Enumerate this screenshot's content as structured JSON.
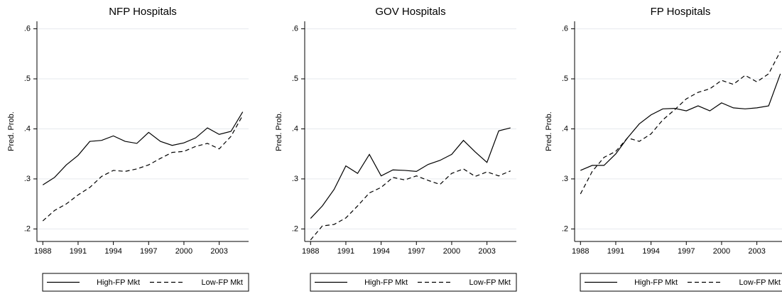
{
  "chart_data": [
    {
      "type": "line",
      "title": "NFP Hospitals",
      "ylabel": "Pred. Prob.",
      "x": [
        1988,
        1989,
        1990,
        1991,
        1992,
        1993,
        1994,
        1995,
        1996,
        1997,
        1998,
        1999,
        2000,
        2001,
        2002,
        2003,
        2004,
        2005
      ],
      "xlim": [
        1987.5,
        2005.5
      ],
      "xticks": [
        1988,
        1991,
        1994,
        1997,
        2000,
        2003
      ],
      "ylim": [
        0.175,
        0.615
      ],
      "yticks": [
        {
          "value": 0.2,
          "label": ".2"
        },
        {
          "value": 0.3,
          "label": ".3"
        },
        {
          "value": 0.4,
          "label": ".4"
        },
        {
          "value": 0.5,
          "label": ".5"
        },
        {
          "value": 0.6,
          "label": ".6"
        }
      ],
      "grid": true,
      "legend": "bottom",
      "series": [
        {
          "name": "High-FP Mkt",
          "color": "#000000",
          "style": "solid",
          "values": [
            0.288,
            0.303,
            0.328,
            0.347,
            0.375,
            0.377,
            0.386,
            0.375,
            0.371,
            0.393,
            0.375,
            0.367,
            0.372,
            0.382,
            0.402,
            0.389,
            0.395,
            0.434
          ]
        },
        {
          "name": "Low-FP Mkt",
          "color": "#000000",
          "style": "dashed",
          "values": [
            0.216,
            0.237,
            0.25,
            0.268,
            0.283,
            0.305,
            0.317,
            0.315,
            0.32,
            0.328,
            0.341,
            0.353,
            0.355,
            0.365,
            0.371,
            0.36,
            0.385,
            0.427
          ]
        }
      ]
    },
    {
      "type": "line",
      "title": "GOV Hospitals",
      "ylabel": "Pred. Prob.",
      "x": [
        1988,
        1989,
        1990,
        1991,
        1992,
        1993,
        1994,
        1995,
        1996,
        1997,
        1998,
        1999,
        2000,
        2001,
        2002,
        2003,
        2004,
        2005
      ],
      "xlim": [
        1987.5,
        2005.5
      ],
      "xticks": [
        1988,
        1991,
        1994,
        1997,
        2000,
        2003
      ],
      "ylim": [
        0.175,
        0.615
      ],
      "yticks": [
        {
          "value": 0.2,
          "label": ".2"
        },
        {
          "value": 0.3,
          "label": ".3"
        },
        {
          "value": 0.4,
          "label": ".4"
        },
        {
          "value": 0.5,
          "label": ".5"
        },
        {
          "value": 0.6,
          "label": ".6"
        }
      ],
      "grid": true,
      "legend": "bottom",
      "series": [
        {
          "name": "High-FP Mkt",
          "color": "#000000",
          "style": "solid",
          "values": [
            0.221,
            0.246,
            0.279,
            0.326,
            0.311,
            0.349,
            0.306,
            0.318,
            0.317,
            0.315,
            0.329,
            0.337,
            0.349,
            0.377,
            0.354,
            0.333,
            0.396,
            0.402
          ]
        },
        {
          "name": "Low-FP Mkt",
          "color": "#000000",
          "style": "dashed",
          "values": [
            0.178,
            0.206,
            0.209,
            0.222,
            0.246,
            0.272,
            0.283,
            0.303,
            0.298,
            0.306,
            0.297,
            0.289,
            0.311,
            0.32,
            0.305,
            0.314,
            0.306,
            0.316
          ]
        }
      ]
    },
    {
      "type": "line",
      "title": "FP Hospitals",
      "ylabel": "Pred. Prob.",
      "x": [
        1988,
        1989,
        1990,
        1991,
        1992,
        1993,
        1994,
        1995,
        1996,
        1997,
        1998,
        1999,
        2000,
        2001,
        2002,
        2003,
        2004,
        2005
      ],
      "xlim": [
        1987.5,
        2005.5
      ],
      "xticks": [
        1988,
        1991,
        1994,
        1997,
        2000,
        2003
      ],
      "ylim": [
        0.175,
        0.615
      ],
      "yticks": [
        {
          "value": 0.2,
          "label": ".2"
        },
        {
          "value": 0.3,
          "label": ".3"
        },
        {
          "value": 0.4,
          "label": ".4"
        },
        {
          "value": 0.5,
          "label": ".5"
        },
        {
          "value": 0.6,
          "label": ".6"
        }
      ],
      "grid": true,
      "legend": "bottom",
      "series": [
        {
          "name": "High-FP Mkt",
          "color": "#000000",
          "style": "solid",
          "values": [
            0.317,
            0.327,
            0.327,
            0.35,
            0.382,
            0.41,
            0.428,
            0.44,
            0.441,
            0.436,
            0.446,
            0.436,
            0.452,
            0.442,
            0.44,
            0.442,
            0.446,
            0.51
          ]
        },
        {
          "name": "Low-FP Mkt",
          "color": "#000000",
          "style": "dashed",
          "values": [
            0.27,
            0.315,
            0.343,
            0.355,
            0.382,
            0.375,
            0.39,
            0.418,
            0.438,
            0.46,
            0.473,
            0.48,
            0.497,
            0.489,
            0.507,
            0.494,
            0.51,
            0.555
          ]
        }
      ]
    }
  ]
}
